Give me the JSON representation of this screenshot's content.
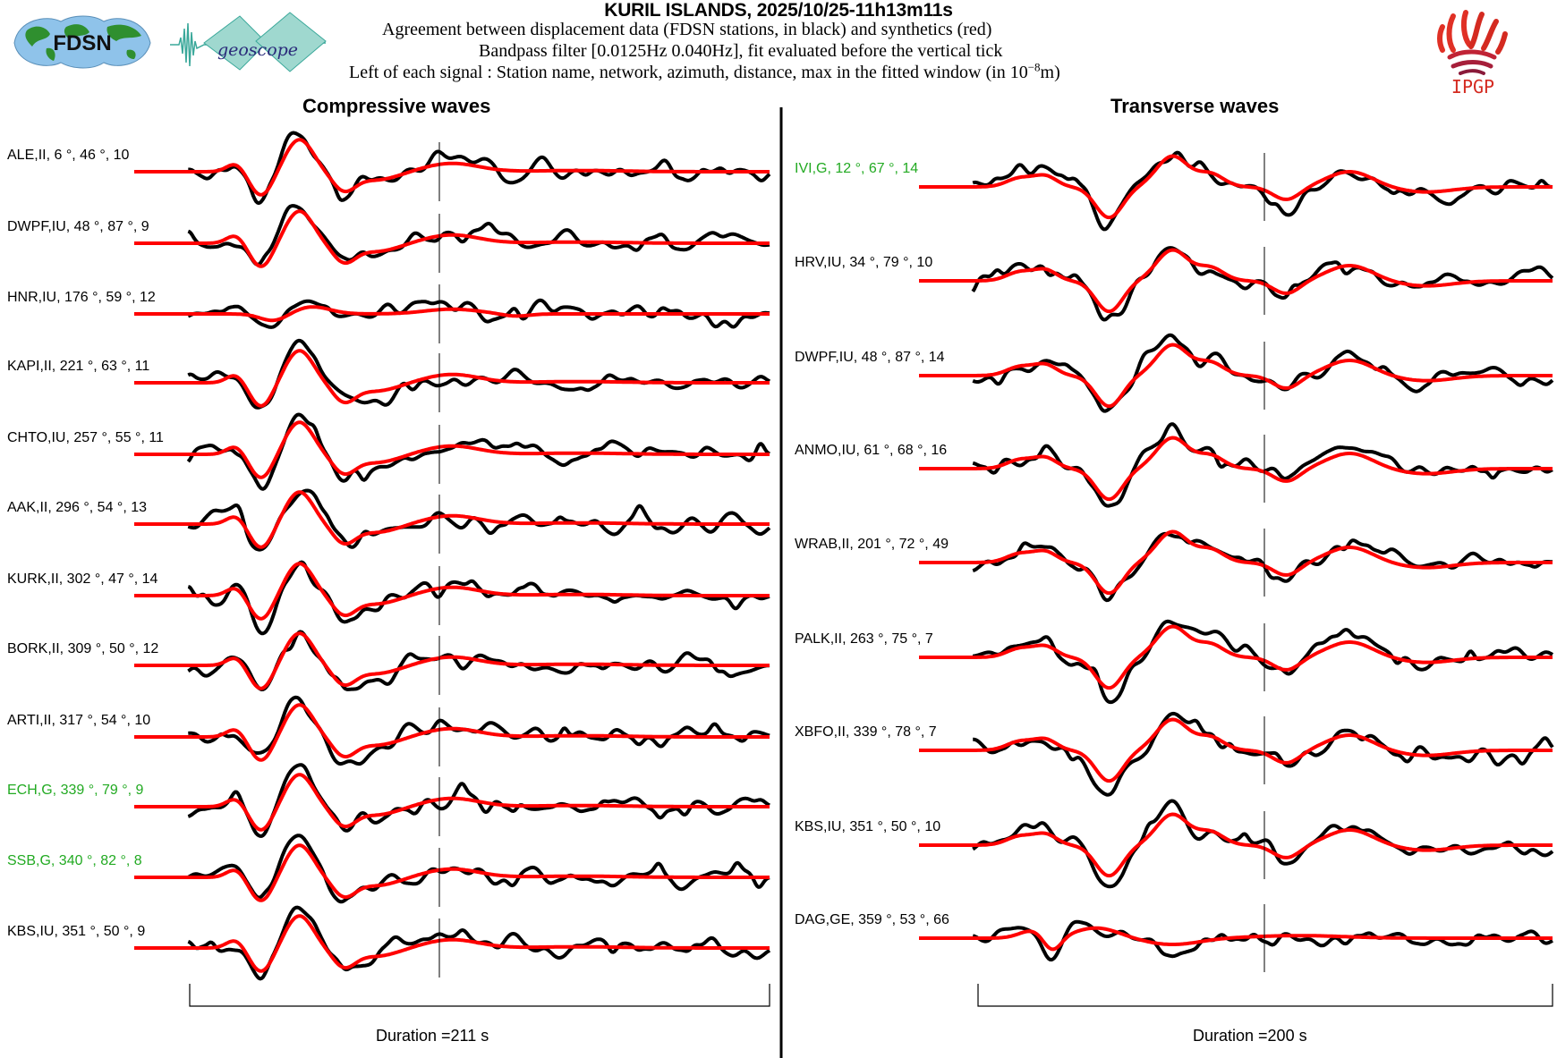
{
  "header": {
    "title": "KURIL ISLANDS, 2025/10/25-11h13m11s",
    "line1": "Agreement between displacement data (FDSN stations, in black) and synthetics (red)",
    "line2": "Bandpass filter [0.0125Hz 0.040Hz], fit evaluated before the vertical tick",
    "line3_prefix": "Left of each signal : Station name, network, azimuth, distance, max in the fitted window (in 10",
    "line3_exp": "−8",
    "line3_suffix": "m)"
  },
  "logos": {
    "fdsn": "FDSN",
    "geoscope": "geoscope",
    "ipgp": "IPGP"
  },
  "colors": {
    "data": "#000000",
    "synthetic": "#ff0000",
    "geoscope_label": "#22aa22",
    "other_label": "#000000",
    "ipgp": "#d42a20"
  },
  "chart_data": [
    {
      "type": "line",
      "title": "Compressive waves",
      "xlabel": "Duration =211 s",
      "duration_s": 211,
      "series_legend": [
        "data (black)",
        "synthetics (red)"
      ],
      "stations": [
        {
          "name": "ALE",
          "network": "II",
          "azimuth": 6,
          "distance": 46,
          "max": 10,
          "label": "ALE,II, 6 °, 46 °, 10",
          "geoscope": false
        },
        {
          "name": "DWPF",
          "network": "IU",
          "azimuth": 48,
          "distance": 87,
          "max": 9,
          "label": "DWPF,IU, 48 °, 87 °, 9",
          "geoscope": false
        },
        {
          "name": "HNR",
          "network": "IU",
          "azimuth": 176,
          "distance": 59,
          "max": 12,
          "label": "HNR,IU, 176  °, 59 °, 12",
          "geoscope": false
        },
        {
          "name": "KAPI",
          "network": "II",
          "azimuth": 221,
          "distance": 63,
          "max": 11,
          "label": "KAPI,II, 221  °, 63 °, 11",
          "geoscope": false
        },
        {
          "name": "CHTO",
          "network": "IU",
          "azimuth": 257,
          "distance": 55,
          "max": 11,
          "label": "CHTO,IU, 257  °, 55 °, 11",
          "geoscope": false
        },
        {
          "name": "AAK",
          "network": "II",
          "azimuth": 296,
          "distance": 54,
          "max": 13,
          "label": "AAK,II, 296  °, 54 °, 13",
          "geoscope": false
        },
        {
          "name": "KURK",
          "network": "II",
          "azimuth": 302,
          "distance": 47,
          "max": 14,
          "label": "KURK,II, 302  °, 47 °, 14",
          "geoscope": false
        },
        {
          "name": "BORK",
          "network": "II",
          "azimuth": 309,
          "distance": 50,
          "max": 12,
          "label": "BORK,II, 309  °, 50 °, 12",
          "geoscope": false
        },
        {
          "name": "ARTI",
          "network": "II",
          "azimuth": 317,
          "distance": 54,
          "max": 10,
          "label": "ARTI,II, 317  °, 54 °, 10",
          "geoscope": false
        },
        {
          "name": "ECH",
          "network": "G",
          "azimuth": 339,
          "distance": 79,
          "max": 9,
          "label": "ECH,G, 339  °, 79 °, 9",
          "geoscope": true
        },
        {
          "name": "SSB",
          "network": "G",
          "azimuth": 340,
          "distance": 82,
          "max": 8,
          "label": "SSB,G, 340  °, 82 °, 8",
          "geoscope": true
        },
        {
          "name": "KBS",
          "network": "IU",
          "azimuth": 351,
          "distance": 50,
          "max": 9,
          "label": "KBS,IU, 351  °, 50 °, 9",
          "geoscope": false
        }
      ]
    },
    {
      "type": "line",
      "title": "Transverse waves",
      "xlabel": "Duration =200 s",
      "duration_s": 200,
      "series_legend": [
        "data (black)",
        "synthetics (red)"
      ],
      "stations": [
        {
          "name": "IVI",
          "network": "G",
          "azimuth": 12,
          "distance": 67,
          "max": 14,
          "label": "IVI,G, 12  °, 67 °, 14",
          "geoscope": true
        },
        {
          "name": "HRV",
          "network": "IU",
          "azimuth": 34,
          "distance": 79,
          "max": 10,
          "label": "HRV,IU, 34  °, 79 °, 10",
          "geoscope": false
        },
        {
          "name": "DWPF",
          "network": "IU",
          "azimuth": 48,
          "distance": 87,
          "max": 14,
          "label": "DWPF,IU, 48  °, 87 °, 14",
          "geoscope": false
        },
        {
          "name": "ANMO",
          "network": "IU",
          "azimuth": 61,
          "distance": 68,
          "max": 16,
          "label": "ANMO,IU, 61  °, 68 °, 16",
          "geoscope": false
        },
        {
          "name": "WRAB",
          "network": "II",
          "azimuth": 201,
          "distance": 72,
          "max": 49,
          "label": "WRAB,II, 201  °, 72 °, 49",
          "geoscope": false
        },
        {
          "name": "PALK",
          "network": "II",
          "azimuth": 263,
          "distance": 75,
          "max": 7,
          "label": "PALK,II, 263  °, 75 °, 7",
          "geoscope": false
        },
        {
          "name": "XBFO",
          "network": "II",
          "azimuth": 339,
          "distance": 78,
          "max": 7,
          "label": "XBFO,II, 339  °, 78 °, 7",
          "geoscope": false
        },
        {
          "name": "KBS",
          "network": "IU",
          "azimuth": 351,
          "distance": 50,
          "max": 10,
          "label": "KBS,IU, 351  °, 50 °, 10",
          "geoscope": false
        },
        {
          "name": "DAG",
          "network": "GE",
          "azimuth": 359,
          "distance": 53,
          "max": 66,
          "label": "DAG,GE, 359  °, 53 °, 66",
          "geoscope": false
        }
      ]
    }
  ]
}
